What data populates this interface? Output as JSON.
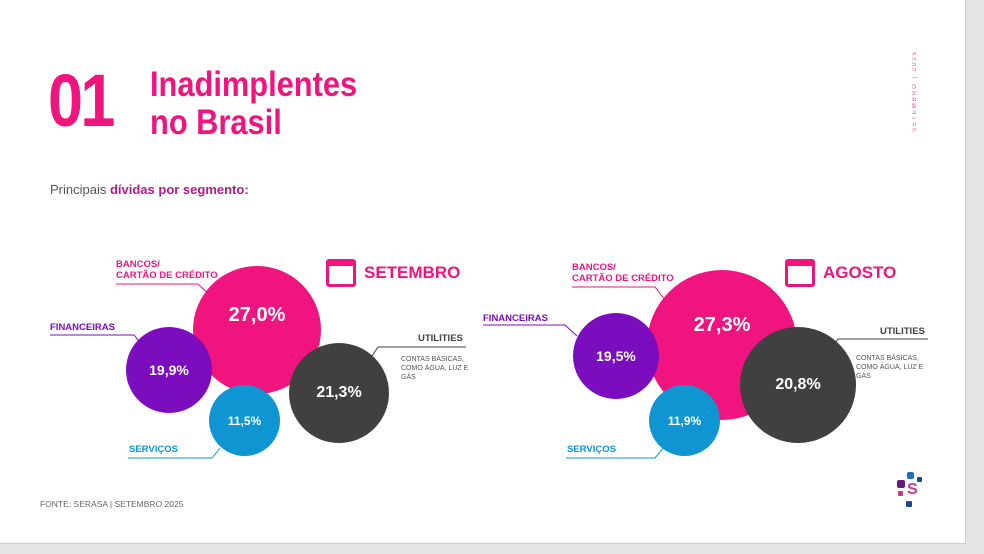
{
  "header": {
    "number": "01",
    "title_line1": "Inadimplentes",
    "title_line2": "no Brasil",
    "subtitle_prefix": "Principais ",
    "subtitle_bold": "dívidas por segmento:",
    "side_text": "SETEMBRO | 2025"
  },
  "footer": {
    "source": "FONTE: SERASA | SETEMBRO 2025",
    "logo_letter": "S"
  },
  "labels": {
    "bancos_1": "BANCOS/",
    "bancos_2": "CARTÃO DE CRÉDITO",
    "financeiras": "FINANCEIRAS",
    "utilities": "UTILITIES",
    "utilities_note": "CONTAS BÁSICAS, COMO  ÁGUA, LUZ E GÁS",
    "servicos": "SERVIÇOS"
  },
  "charts": [
    {
      "month": "SETEMBRO",
      "bancos": "27,0%",
      "financeiras": "19,9%",
      "servicos": "11,5%",
      "utilities": "21,3%"
    },
    {
      "month": "AGOSTO",
      "bancos": "27,3%",
      "financeiras": "19,5%",
      "servicos": "11,9%",
      "utilities": "20,8%"
    }
  ],
  "colors": {
    "bancos": "#f0147f",
    "financeiras": "#7b0dbf",
    "servicos": "#0e95d2",
    "utilities": "#404040"
  }
}
